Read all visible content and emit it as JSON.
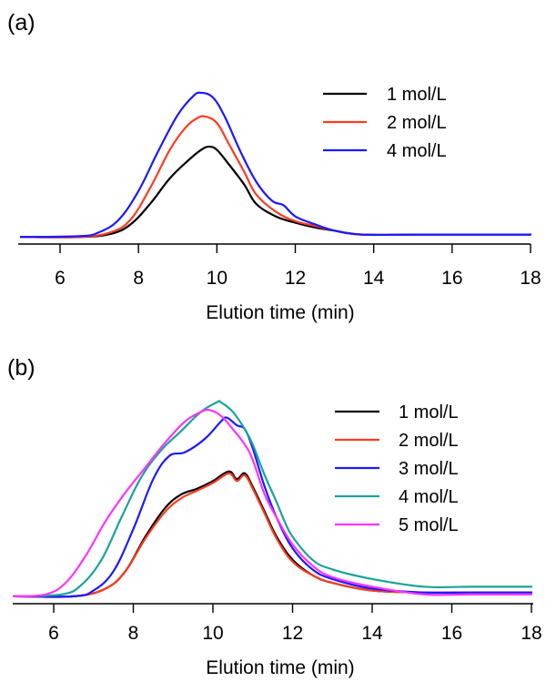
{
  "chart_data": [
    {
      "panel_label": "(a)",
      "type": "line",
      "xlabel": "Elution time (min)",
      "ylabel": "",
      "xlim": [
        4.9,
        18.1
      ],
      "ylim": [
        0,
        1.0
      ],
      "xticks": [
        6,
        8,
        10,
        12,
        14,
        16,
        18
      ],
      "y_axis_shown": false,
      "legend_position": "top-right",
      "series": [
        {
          "name": "1 mol/L",
          "color": "#000000",
          "x": [
            5,
            6.5,
            7.3,
            7.8,
            8.3,
            8.8,
            9.3,
            9.6,
            9.8,
            10.0,
            10.3,
            10.7,
            11.0,
            11.5,
            12.0,
            12.5,
            13.0,
            13.7,
            15.0,
            16.5,
            18.0
          ],
          "y": [
            0.01,
            0.01,
            0.03,
            0.09,
            0.22,
            0.38,
            0.5,
            0.56,
            0.58,
            0.56,
            0.47,
            0.34,
            0.22,
            0.14,
            0.1,
            0.07,
            0.05,
            0.025,
            0.025,
            0.025,
            0.025
          ]
        },
        {
          "name": "2 mol/L",
          "color": "#ff3b1f",
          "x": [
            5,
            6.5,
            7.3,
            7.8,
            8.3,
            8.8,
            9.2,
            9.5,
            9.7,
            10.0,
            10.3,
            10.7,
            11.0,
            11.5,
            12.0,
            12.5,
            13.0,
            13.7,
            15.0,
            16.5,
            18.0
          ],
          "y": [
            0.01,
            0.01,
            0.04,
            0.12,
            0.32,
            0.56,
            0.7,
            0.76,
            0.77,
            0.73,
            0.6,
            0.42,
            0.28,
            0.17,
            0.11,
            0.08,
            0.05,
            0.025,
            0.025,
            0.025,
            0.025
          ]
        },
        {
          "name": "4 mol/L",
          "color": "#1a1aff",
          "x": [
            5,
            6.5,
            7.0,
            7.5,
            8.0,
            8.5,
            9.0,
            9.4,
            9.6,
            9.9,
            10.2,
            10.6,
            11.0,
            11.4,
            11.7,
            12.0,
            12.5,
            13.0,
            13.7,
            15.0,
            16.5,
            18.0
          ],
          "y": [
            0.01,
            0.015,
            0.04,
            0.12,
            0.3,
            0.55,
            0.78,
            0.9,
            0.92,
            0.89,
            0.77,
            0.55,
            0.36,
            0.24,
            0.21,
            0.14,
            0.09,
            0.05,
            0.025,
            0.025,
            0.025,
            0.025
          ]
        }
      ]
    },
    {
      "panel_label": "(b)",
      "type": "line",
      "xlabel": "Elution time (min)",
      "ylabel": "",
      "xlim": [
        4.9,
        18.1
      ],
      "ylim": [
        0,
        1.0
      ],
      "xticks": [
        6,
        8,
        10,
        12,
        14,
        16,
        18
      ],
      "y_axis_shown": false,
      "legend_position": "top-right",
      "series": [
        {
          "name": "1 mol/L",
          "color": "#000000",
          "x": [
            5,
            6.5,
            7.3,
            7.8,
            8.3,
            8.8,
            9.2,
            9.6,
            10.0,
            10.4,
            10.6,
            10.8,
            11.0,
            11.3,
            11.6,
            12.0,
            12.5,
            13.0,
            14.0,
            15.3,
            16.5,
            18.0
          ],
          "y": [
            0.01,
            0.01,
            0.05,
            0.14,
            0.32,
            0.47,
            0.54,
            0.57,
            0.61,
            0.66,
            0.62,
            0.65,
            0.58,
            0.45,
            0.32,
            0.2,
            0.12,
            0.08,
            0.04,
            0.03,
            0.03,
            0.03
          ]
        },
        {
          "name": "2 mol/L",
          "color": "#ff3b1f",
          "x": [
            5,
            6.5,
            7.3,
            7.8,
            8.3,
            8.8,
            9.2,
            9.6,
            10.0,
            10.4,
            10.6,
            10.8,
            11.0,
            11.3,
            11.6,
            12.0,
            12.5,
            13.0,
            14.0,
            15.3,
            16.5,
            18.0
          ],
          "y": [
            0.01,
            0.01,
            0.05,
            0.14,
            0.31,
            0.45,
            0.52,
            0.56,
            0.6,
            0.65,
            0.61,
            0.64,
            0.57,
            0.44,
            0.31,
            0.19,
            0.12,
            0.08,
            0.04,
            0.03,
            0.03,
            0.03
          ]
        },
        {
          "name": "3 mol/L",
          "color": "#1a1aff",
          "x": [
            5,
            6.5,
            7.0,
            7.5,
            8.0,
            8.5,
            8.9,
            9.3,
            9.8,
            10.2,
            10.35,
            10.6,
            10.8,
            11.0,
            11.3,
            11.6,
            12.0,
            12.5,
            13.0,
            14.0,
            15.3,
            16.5,
            18.0
          ],
          "y": [
            0.01,
            0.01,
            0.04,
            0.14,
            0.36,
            0.62,
            0.74,
            0.76,
            0.83,
            0.92,
            0.94,
            0.9,
            0.88,
            0.78,
            0.58,
            0.42,
            0.26,
            0.15,
            0.1,
            0.05,
            0.03,
            0.03,
            0.03
          ]
        },
        {
          "name": "4 mol/L",
          "color": "#1aa39a",
          "x": [
            5,
            6.2,
            6.7,
            7.2,
            7.7,
            8.2,
            8.7,
            9.2,
            9.7,
            10.1,
            10.2,
            10.5,
            10.8,
            11.0,
            11.3,
            11.6,
            11.8,
            12.0,
            12.5,
            13.0,
            14.0,
            15.3,
            16.5,
            18.0
          ],
          "y": [
            0.01,
            0.02,
            0.07,
            0.2,
            0.42,
            0.63,
            0.77,
            0.87,
            0.97,
            1.02,
            1.02,
            0.97,
            0.88,
            0.8,
            0.64,
            0.5,
            0.4,
            0.32,
            0.2,
            0.15,
            0.1,
            0.06,
            0.06,
            0.06
          ]
        },
        {
          "name": "5 mol/L",
          "color": "#ff33ff",
          "x": [
            5,
            5.8,
            6.3,
            6.8,
            7.3,
            7.8,
            8.3,
            8.8,
            9.3,
            9.7,
            9.9,
            10.2,
            10.5,
            10.8,
            11.0,
            11.3,
            11.6,
            12.0,
            12.5,
            13.0,
            14.0,
            15.3,
            16.5,
            18.0
          ],
          "y": [
            0.01,
            0.02,
            0.08,
            0.22,
            0.4,
            0.55,
            0.68,
            0.81,
            0.92,
            0.97,
            0.98,
            0.95,
            0.88,
            0.8,
            0.72,
            0.54,
            0.42,
            0.28,
            0.17,
            0.11,
            0.06,
            0.02,
            0.02,
            0.02
          ]
        }
      ]
    }
  ]
}
